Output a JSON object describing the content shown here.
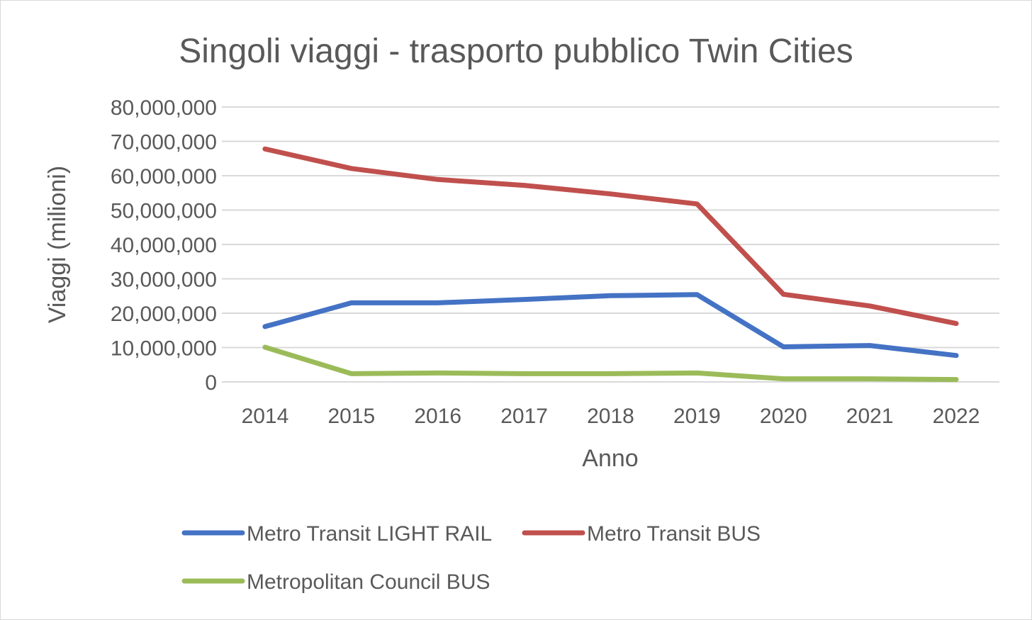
{
  "chart_data": {
    "type": "line",
    "title": "Singoli viaggi - trasporto pubblico Twin Cities",
    "xlabel": "Anno",
    "ylabel": "Viaggi (milioni)",
    "categories": [
      "2014",
      "2015",
      "2016",
      "2017",
      "2018",
      "2019",
      "2020",
      "2021",
      "2022"
    ],
    "ylim": [
      0,
      80000000
    ],
    "yticks": [
      0,
      10000000,
      20000000,
      30000000,
      40000000,
      50000000,
      60000000,
      70000000,
      80000000
    ],
    "ytick_labels": [
      "0",
      "10,000,000",
      "20,000,000",
      "30,000,000",
      "40,000,000",
      "50,000,000",
      "60,000,000",
      "70,000,000",
      "80,000,000"
    ],
    "grid": true,
    "legend_position": "bottom",
    "series": [
      {
        "name": "Metro Transit LIGHT RAIL",
        "color": "#4472c4",
        "values": [
          16100000,
          23000000,
          23000000,
          24000000,
          25100000,
          25400000,
          10200000,
          10600000,
          7700000
        ]
      },
      {
        "name": "Metro Transit BUS",
        "color": "#c0504d",
        "values": [
          67800000,
          62100000,
          58900000,
          57200000,
          54700000,
          51800000,
          25500000,
          22100000,
          17000000
        ]
      },
      {
        "name": "Metropolitan Council BUS",
        "color": "#9bbb59",
        "values": [
          10100000,
          2400000,
          2600000,
          2400000,
          2400000,
          2600000,
          900000,
          900000,
          700000
        ]
      }
    ]
  }
}
